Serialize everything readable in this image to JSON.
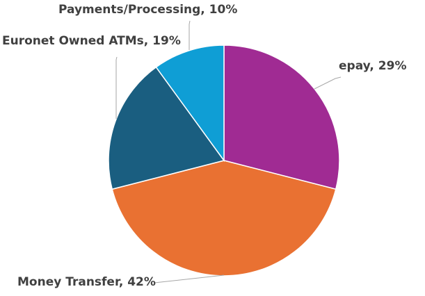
{
  "chart_data": {
    "type": "pie",
    "title": "",
    "slices": [
      {
        "label": "epay",
        "value": 29,
        "percent_label": "29%",
        "color": "#a02b93"
      },
      {
        "label": "Money Transfer",
        "value": 42,
        "percent_label": "42%",
        "color": "#e97132"
      },
      {
        "label": "Euronet Owned ATMs",
        "value": 19,
        "percent_label": "19%",
        "color": "#1a5e80"
      },
      {
        "label": "Payments/Processing",
        "value": 10,
        "percent_label": "10%",
        "color": "#0f9ed5"
      }
    ],
    "start": "12 o'clock",
    "direction": "clockwise",
    "legend": "none",
    "data_labels": "outside with leader lines"
  }
}
